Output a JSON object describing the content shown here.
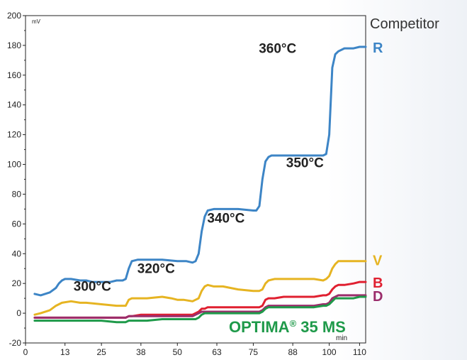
{
  "chart_data": {
    "type": "line",
    "ylabel": "mV",
    "xlabel": "min",
    "xlim": [
      0,
      112
    ],
    "ylim": [
      -20,
      200
    ],
    "x_ticks": [
      0,
      13,
      25,
      38,
      50,
      63,
      75,
      88,
      100,
      110
    ],
    "y_ticks": [
      -20,
      0,
      20,
      40,
      60,
      80,
      100,
      120,
      140,
      160,
      180,
      200
    ],
    "grid": false,
    "competitor_heading": "Competitor",
    "optima_label": "OPTIMA",
    "optima_reg": "®",
    "optima_rest": " 35 MS",
    "annotations": [
      {
        "text": "300°C",
        "x": 22,
        "y": 15
      },
      {
        "text": "320°C",
        "x": 43,
        "y": 27
      },
      {
        "text": "340°C",
        "x": 66,
        "y": 61
      },
      {
        "text": "350°C",
        "x": 92,
        "y": 98
      },
      {
        "text": "360°C",
        "x": 83,
        "y": 175
      }
    ],
    "series": [
      {
        "name": "R",
        "color": "#3d85c6",
        "x": [
          3,
          5,
          8,
          10,
          11,
          12,
          13,
          15,
          18,
          20,
          22,
          25,
          28,
          30,
          32,
          33,
          34,
          35,
          37,
          40,
          45,
          50,
          53,
          55,
          56,
          57,
          58,
          59,
          60,
          62,
          65,
          70,
          75,
          76,
          77,
          78,
          79,
          80,
          81,
          82,
          85,
          90,
          95,
          98,
          99,
          100,
          101,
          102,
          103,
          105,
          108,
          110,
          112
        ],
        "y": [
          13,
          12,
          14,
          17,
          20,
          22,
          23,
          23,
          22,
          22,
          21,
          21,
          21,
          22,
          22,
          23,
          30,
          35,
          36,
          36,
          36,
          35,
          35,
          34,
          35,
          40,
          55,
          65,
          69,
          70,
          70,
          70,
          69,
          69,
          72,
          90,
          102,
          105,
          106,
          106,
          106,
          106,
          106,
          106,
          107,
          120,
          165,
          174,
          176,
          178,
          178,
          179,
          179
        ]
      },
      {
        "name": "V",
        "color": "#e6b422",
        "x": [
          3,
          5,
          8,
          10,
          12,
          15,
          18,
          20,
          25,
          30,
          32,
          33,
          34,
          35,
          38,
          40,
          45,
          48,
          50,
          52,
          55,
          56,
          57,
          58,
          59,
          60,
          62,
          65,
          70,
          75,
          77,
          78,
          79,
          80,
          82,
          85,
          90,
          95,
          98,
          99,
          100,
          101,
          102,
          103,
          105,
          108,
          110,
          112
        ],
        "y": [
          -1,
          0,
          2,
          5,
          7,
          8,
          7,
          7,
          6,
          5,
          5,
          5,
          9,
          10,
          10,
          10,
          11,
          10,
          9,
          9,
          8,
          9,
          10,
          15,
          18,
          19,
          18,
          18,
          16,
          15,
          15,
          16,
          20,
          22,
          23,
          23,
          23,
          23,
          22,
          23,
          25,
          30,
          33,
          35,
          35,
          35,
          35,
          35
        ]
      },
      {
        "name": "B",
        "color": "#e02030",
        "x": [
          3,
          5,
          10,
          15,
          20,
          25,
          30,
          33,
          34,
          35,
          38,
          40,
          45,
          50,
          55,
          56,
          57,
          58,
          59,
          60,
          62,
          65,
          70,
          75,
          77,
          78,
          79,
          80,
          82,
          85,
          90,
          95,
          98,
          99,
          100,
          101,
          102,
          103,
          105,
          108,
          110,
          112
        ],
        "y": [
          -3,
          -3,
          -3,
          -3,
          -3,
          -3,
          -3,
          -3,
          -2,
          -2,
          -1,
          -1,
          -1,
          -1,
          -1,
          0,
          1,
          3,
          3,
          4,
          4,
          4,
          4,
          4,
          4,
          5,
          9,
          10,
          10,
          11,
          11,
          11,
          12,
          12,
          13,
          16,
          18,
          19,
          19,
          20,
          21,
          21
        ]
      },
      {
        "name": "D",
        "color": "#9b2d6b",
        "x": [
          3,
          5,
          10,
          15,
          20,
          25,
          30,
          33,
          34,
          35,
          38,
          40,
          45,
          50,
          55,
          56,
          57,
          58,
          59,
          60,
          62,
          65,
          70,
          75,
          77,
          78,
          79,
          80,
          82,
          85,
          90,
          95,
          98,
          99,
          100,
          101,
          102,
          103,
          105,
          108,
          110,
          112
        ],
        "y": [
          -3,
          -3,
          -3,
          -3,
          -3,
          -3,
          -3,
          -3,
          -2,
          -2,
          -2,
          -2,
          -2,
          -2,
          -2,
          -1,
          0,
          1,
          1,
          1,
          1,
          1,
          1,
          1,
          1,
          2,
          4,
          5,
          5,
          5,
          5,
          5,
          6,
          6,
          7,
          10,
          11,
          12,
          12,
          12,
          12,
          12
        ]
      },
      {
        "name": "OPTIMA® 35 MS",
        "color": "#1f9a4a",
        "x": [
          3,
          5,
          10,
          15,
          20,
          25,
          30,
          33,
          34,
          35,
          38,
          40,
          45,
          50,
          55,
          56,
          57,
          58,
          59,
          60,
          62,
          65,
          70,
          75,
          77,
          78,
          79,
          80,
          82,
          85,
          90,
          95,
          98,
          99,
          100,
          101,
          102,
          103,
          105,
          108,
          110,
          112
        ],
        "y": [
          -5,
          -5,
          -5,
          -5,
          -5,
          -5,
          -6,
          -6,
          -5,
          -5,
          -5,
          -5,
          -4,
          -4,
          -4,
          -4,
          -3,
          -1,
          0,
          0,
          0,
          0,
          0,
          0,
          0,
          1,
          3,
          4,
          4,
          4,
          4,
          4,
          5,
          5,
          6,
          8,
          10,
          10,
          10,
          10,
          11,
          11
        ]
      }
    ],
    "end_labels": [
      {
        "text": "R",
        "color": "#3d85c6",
        "y": 179
      },
      {
        "text": "V",
        "color": "#e6b422",
        "y": 36
      },
      {
        "text": "B",
        "color": "#e02030",
        "y": 21
      },
      {
        "text": "D",
        "color": "#9b2d6b",
        "y": 12
      }
    ]
  }
}
